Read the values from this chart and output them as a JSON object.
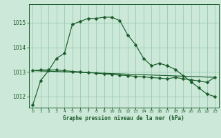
{
  "bg_color": "#cce8d8",
  "grid_color": "#99ccb0",
  "line_color": "#1a5c2a",
  "title": "Graphe pression niveau de la mer (hPa)",
  "xlim": [
    -0.5,
    23.5
  ],
  "ylim": [
    1011.55,
    1015.75
  ],
  "yticks": [
    1012,
    1013,
    1014,
    1015
  ],
  "xticks": [
    0,
    1,
    2,
    3,
    4,
    5,
    6,
    7,
    8,
    9,
    10,
    11,
    12,
    13,
    14,
    15,
    16,
    17,
    18,
    19,
    20,
    21,
    22,
    23
  ],
  "line1_x": [
    0,
    1,
    2,
    3,
    4,
    5,
    6,
    7,
    8,
    9,
    10,
    11,
    12,
    13,
    14,
    15,
    16,
    17,
    18,
    19,
    20,
    21,
    22,
    23
  ],
  "line1_y": [
    1011.65,
    1012.65,
    1013.05,
    1013.55,
    1013.75,
    1014.93,
    1015.05,
    1015.17,
    1015.17,
    1015.22,
    1015.22,
    1015.08,
    1014.5,
    1014.1,
    1013.55,
    1013.25,
    1013.35,
    1013.25,
    1013.1,
    1012.85,
    1012.6,
    1012.35,
    1012.1,
    1012.0
  ],
  "line2_x": [
    0,
    1,
    2,
    3,
    4,
    5,
    6,
    7,
    8,
    9,
    10,
    11,
    12,
    13,
    14,
    15,
    16,
    17,
    18,
    19,
    20,
    21,
    22,
    23
  ],
  "line2_y": [
    1013.05,
    1013.08,
    1013.08,
    1013.08,
    1013.05,
    1013.02,
    1013.0,
    1012.98,
    1012.95,
    1012.92,
    1012.9,
    1012.87,
    1012.85,
    1012.82,
    1012.8,
    1012.77,
    1012.75,
    1012.72,
    1012.78,
    1012.72,
    1012.68,
    1012.63,
    1012.58,
    1012.78
  ],
  "line3_x": [
    0,
    23
  ],
  "line3_y": [
    1013.05,
    1012.78
  ]
}
